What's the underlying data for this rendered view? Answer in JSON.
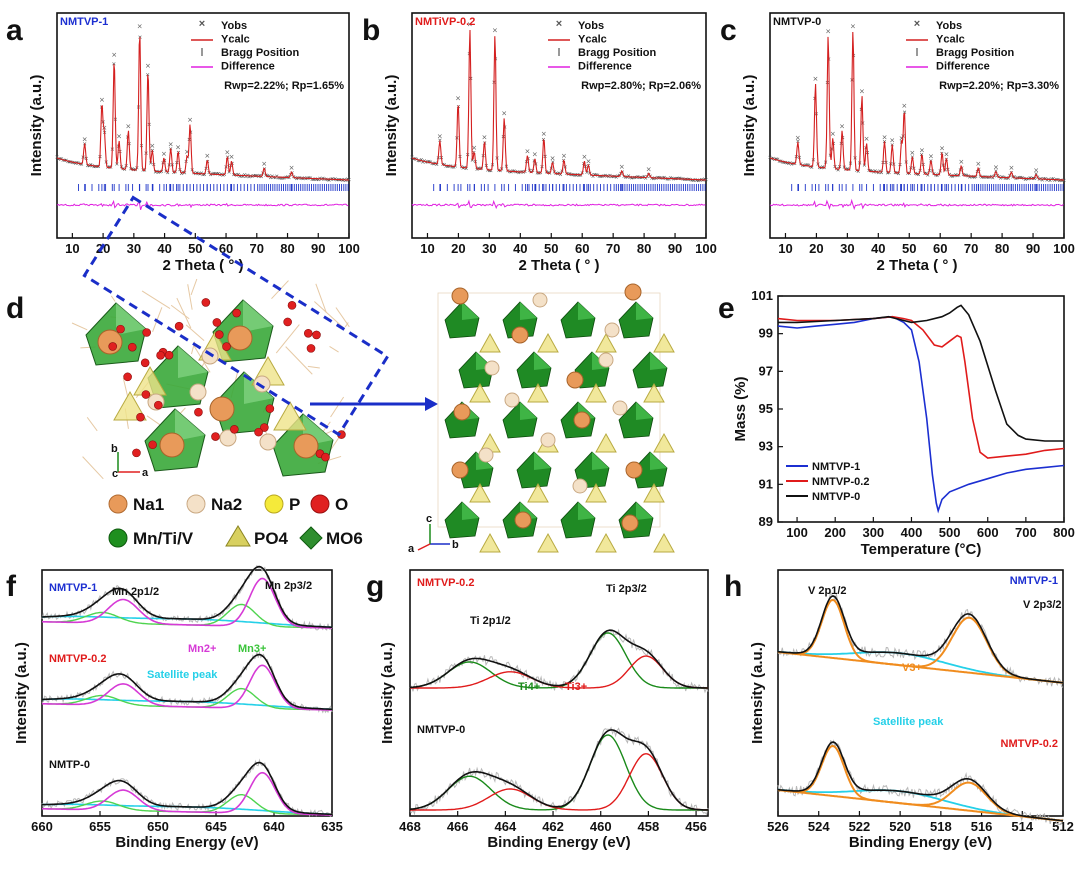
{
  "figure": {
    "panel_letters": [
      "a",
      "b",
      "c",
      "d",
      "e",
      "f",
      "g",
      "h"
    ],
    "xrd_legend": [
      "Yobs",
      "Ycalc",
      "Bragg Position",
      "Difference"
    ],
    "structure_key": [
      "Na1",
      "Na2",
      "P",
      "O",
      "Mn/Ti/V",
      "PO4",
      "MO6"
    ],
    "xps_labels": {
      "f": {
        "mn2p12": "Mn 2p1/2",
        "mn2p32": "Mn 2p3/2",
        "mn2": "Mn2+",
        "mn3": "Mn3+",
        "satellite": "Satellite peak",
        "s1": "NMTVP-1",
        "s2": "NMTVP-0.2",
        "s3": "NMTP-0"
      },
      "g": {
        "ti2p12": "Ti 2p1/2",
        "ti2p32": "Ti 2p3/2",
        "ti4": "Ti4+",
        "ti3": "Ti3+",
        "s1": "NMTVP-0.2",
        "s2": "NMTVP-0"
      },
      "h": {
        "v2p12": "V 2p1/2",
        "v2p32": "V 2p3/2",
        "v3": "V3+",
        "satellite": "Satellite peak",
        "s1": "NMTVP-1",
        "s2": "NMTVP-0.2"
      }
    },
    "colors": {
      "yobs": "#555555",
      "ycalc": "#d42020",
      "bragg": "#1f35c8",
      "diff": "#e020e0",
      "blue": "#1c2fd1",
      "red": "#e01b1b",
      "black": "#111111",
      "green": "#1a8a1a",
      "magenta": "#d63ad6",
      "cyan": "#25d0e8",
      "orange": "#f08c1e",
      "octa": "#2e9a2e",
      "na1": "#e89a5a",
      "na2": "#f2dcc0",
      "p": "#f5e642",
      "o": "#e02020"
    }
  },
  "chart_data": [
    {
      "panel": "a",
      "type": "line",
      "title": "NMTVP-1",
      "xlabel": "2 Theta ( ° )",
      "ylabel": "Intensity (a.u.)",
      "xlim": [
        5,
        100
      ],
      "xticks": [
        10,
        20,
        30,
        40,
        50,
        60,
        70,
        80,
        90,
        100
      ],
      "series": [
        {
          "name": "Yobs"
        },
        {
          "name": "Ycalc"
        },
        {
          "name": "Bragg Position"
        },
        {
          "name": "Difference"
        }
      ],
      "annotation": "Rwp=2.22%; Rp=1.65%",
      "peaks": [
        {
          "x": 14,
          "h": 0.15
        },
        {
          "x": 19.6,
          "h": 0.45
        },
        {
          "x": 20.4,
          "h": 0.25
        },
        {
          "x": 23.6,
          "h": 0.78
        },
        {
          "x": 25.2,
          "h": 0.2
        },
        {
          "x": 28.2,
          "h": 0.28
        },
        {
          "x": 31.9,
          "h": 1.0
        },
        {
          "x": 34.6,
          "h": 0.72
        },
        {
          "x": 36,
          "h": 0.15
        },
        {
          "x": 39.8,
          "h": 0.1
        },
        {
          "x": 42,
          "h": 0.17
        },
        {
          "x": 44.4,
          "h": 0.15
        },
        {
          "x": 47.3,
          "h": 0.12
        },
        {
          "x": 48.3,
          "h": 0.35
        },
        {
          "x": 53.9,
          "h": 0.1
        },
        {
          "x": 60.4,
          "h": 0.13
        },
        {
          "x": 61.8,
          "h": 0.1
        },
        {
          "x": 72.4,
          "h": 0.06
        },
        {
          "x": 81.3,
          "h": 0.04
        }
      ]
    },
    {
      "panel": "b",
      "type": "line",
      "title": "NMTiVP-0.2",
      "xlabel": "2 Theta ( ° )",
      "ylabel": "Intensity (a.u.)",
      "xlim": [
        5,
        100
      ],
      "xticks": [
        10,
        20,
        30,
        40,
        50,
        60,
        70,
        80,
        90,
        100
      ],
      "series": [
        {
          "name": "Yobs"
        },
        {
          "name": "Ycalc"
        },
        {
          "name": "Bragg Position"
        },
        {
          "name": "Difference"
        }
      ],
      "annotation": "Rwp=2.80%; Rp=2.06%",
      "peaks": [
        {
          "x": 14,
          "h": 0.17
        },
        {
          "x": 19.9,
          "h": 0.46
        },
        {
          "x": 23.7,
          "h": 1.0
        },
        {
          "x": 25.1,
          "h": 0.12
        },
        {
          "x": 28.4,
          "h": 0.2
        },
        {
          "x": 31.8,
          "h": 0.97
        },
        {
          "x": 34.8,
          "h": 0.38
        },
        {
          "x": 42.3,
          "h": 0.12
        },
        {
          "x": 44.7,
          "h": 0.1
        },
        {
          "x": 47.6,
          "h": 0.25
        },
        {
          "x": 50.4,
          "h": 0.08
        },
        {
          "x": 54.1,
          "h": 0.1
        },
        {
          "x": 60.7,
          "h": 0.1
        },
        {
          "x": 62,
          "h": 0.07
        },
        {
          "x": 72.8,
          "h": 0.04
        },
        {
          "x": 81.5,
          "h": 0.03
        }
      ]
    },
    {
      "panel": "c",
      "type": "line",
      "title": "NMTVP-0",
      "xlabel": "2 Theta ( ° )",
      "ylabel": "Intensity (a.u.)",
      "xlim": [
        5,
        100
      ],
      "xticks": [
        10,
        20,
        30,
        40,
        50,
        60,
        70,
        80,
        90,
        100
      ],
      "series": [
        {
          "name": "Yobs"
        },
        {
          "name": "Ycalc"
        },
        {
          "name": "Bragg Position"
        },
        {
          "name": "Difference"
        }
      ],
      "annotation": "Rwp=2.20%; Rp=3.30%",
      "peaks": [
        {
          "x": 14,
          "h": 0.16
        },
        {
          "x": 19.7,
          "h": 0.6
        },
        {
          "x": 23.8,
          "h": 0.95
        },
        {
          "x": 25.3,
          "h": 0.22
        },
        {
          "x": 28.3,
          "h": 0.28
        },
        {
          "x": 31.8,
          "h": 1.0
        },
        {
          "x": 34.7,
          "h": 0.54
        },
        {
          "x": 36.2,
          "h": 0.2
        },
        {
          "x": 42,
          "h": 0.22
        },
        {
          "x": 44.5,
          "h": 0.2
        },
        {
          "x": 47.5,
          "h": 0.22
        },
        {
          "x": 48.4,
          "h": 0.45
        },
        {
          "x": 51,
          "h": 0.12
        },
        {
          "x": 54.1,
          "h": 0.14
        },
        {
          "x": 57,
          "h": 0.1
        },
        {
          "x": 60.6,
          "h": 0.16
        },
        {
          "x": 62,
          "h": 0.12
        },
        {
          "x": 66.8,
          "h": 0.07
        },
        {
          "x": 72.3,
          "h": 0.06
        },
        {
          "x": 78,
          "h": 0.04
        },
        {
          "x": 83,
          "h": 0.04
        },
        {
          "x": 91,
          "h": 0.03
        }
      ]
    },
    {
      "panel": "e",
      "type": "line",
      "xlabel": "Temperature (°C)",
      "ylabel": "Mass (%)",
      "xlim": [
        50,
        800
      ],
      "ylim": [
        89,
        101
      ],
      "xticks": [
        100,
        200,
        300,
        400,
        500,
        600,
        700,
        800
      ],
      "yticks": [
        89,
        91,
        93,
        95,
        97,
        99,
        101
      ],
      "series": [
        {
          "name": "NMTVP-1",
          "x": [
            50,
            100,
            150,
            200,
            250,
            300,
            350,
            380,
            400,
            420,
            440,
            455,
            465,
            470,
            480,
            500,
            550,
            600,
            650,
            700,
            750,
            800
          ],
          "y": [
            99.4,
            99.3,
            99.4,
            99.5,
            99.6,
            99.8,
            99.9,
            99.6,
            99.2,
            97.5,
            94.5,
            91.5,
            90.0,
            89.6,
            90.2,
            90.6,
            91.0,
            91.3,
            91.6,
            91.8,
            91.9,
            92.0
          ]
        },
        {
          "name": "NMTVP-0.2",
          "x": [
            50,
            100,
            200,
            300,
            350,
            380,
            400,
            430,
            460,
            480,
            500,
            520,
            530,
            540,
            560,
            580,
            600,
            650,
            700,
            750,
            800
          ],
          "y": [
            99.8,
            99.7,
            99.7,
            99.8,
            99.9,
            99.8,
            99.7,
            99.2,
            98.4,
            98.3,
            98.6,
            98.9,
            98.8,
            97.5,
            94.5,
            92.7,
            92.4,
            92.5,
            92.6,
            92.8,
            92.9
          ]
        },
        {
          "name": "NMTVP-0",
          "x": [
            50,
            100,
            200,
            300,
            340,
            380,
            400,
            440,
            480,
            500,
            520,
            530,
            550,
            580,
            620,
            650,
            680,
            700,
            750,
            800
          ],
          "y": [
            99.6,
            99.6,
            99.7,
            99.8,
            99.9,
            99.7,
            99.6,
            99.7,
            99.9,
            100.1,
            100.4,
            100.5,
            100.0,
            98.6,
            96.0,
            94.2,
            93.6,
            93.4,
            93.3,
            93.3
          ]
        }
      ]
    },
    {
      "panel": "f",
      "type": "line",
      "xlabel": "Binding Energy (eV)",
      "ylabel": "Intensity (a.u.)",
      "xlim": [
        660,
        635
      ],
      "xticks": [
        660,
        655,
        650,
        645,
        640,
        635
      ],
      "series": [
        {
          "name": "NMTVP-1"
        },
        {
          "name": "NMTVP-0.2"
        },
        {
          "name": "NMTP-0"
        }
      ],
      "components": [
        {
          "name": "Mn2+",
          "center": 641.0,
          "color": "magenta"
        },
        {
          "name": "Mn3+",
          "center": 642.8,
          "color": "green"
        },
        {
          "name": "Mn2+ 2p1/2",
          "center": 653.2,
          "color": "magenta"
        },
        {
          "name": "Mn3+ 2p1/2",
          "center": 654.8,
          "color": "green"
        },
        {
          "name": "Satellite peak",
          "center": 647.0,
          "color": "cyan"
        }
      ]
    },
    {
      "panel": "g",
      "type": "line",
      "xlabel": "Binding Energy (eV)",
      "ylabel": "Intensity (a.u.)",
      "xlim": [
        468,
        455.5
      ],
      "xticks": [
        468,
        466,
        464,
        462,
        460,
        458,
        456
      ],
      "series": [
        {
          "name": "NMTVP-0.2"
        },
        {
          "name": "NMTVP-0"
        }
      ],
      "components": [
        {
          "name": "Ti4+",
          "center": 459.6,
          "color": "green"
        },
        {
          "name": "Ti3+",
          "center": 458.1,
          "color": "red"
        },
        {
          "name": "Ti4+ 2p1/2",
          "center": 465.4,
          "color": "green"
        },
        {
          "name": "Ti3+ 2p1/2",
          "center": 463.8,
          "color": "red"
        }
      ]
    },
    {
      "panel": "h",
      "type": "line",
      "xlabel": "Binding Energy (eV)",
      "ylabel": "Intensity (a.u.)",
      "xlim": [
        526,
        512
      ],
      "xticks": [
        526,
        524,
        522,
        520,
        518,
        516,
        514,
        512
      ],
      "series": [
        {
          "name": "NMTVP-1"
        },
        {
          "name": "NMTVP-0.2"
        }
      ],
      "components": [
        {
          "name": "V3+ 2p1/2",
          "center": 523.3,
          "color": "orange"
        },
        {
          "name": "V3+ 2p3/2",
          "center": 516.6,
          "color": "orange"
        },
        {
          "name": "Satellite peak",
          "color": "cyan"
        }
      ]
    }
  ]
}
